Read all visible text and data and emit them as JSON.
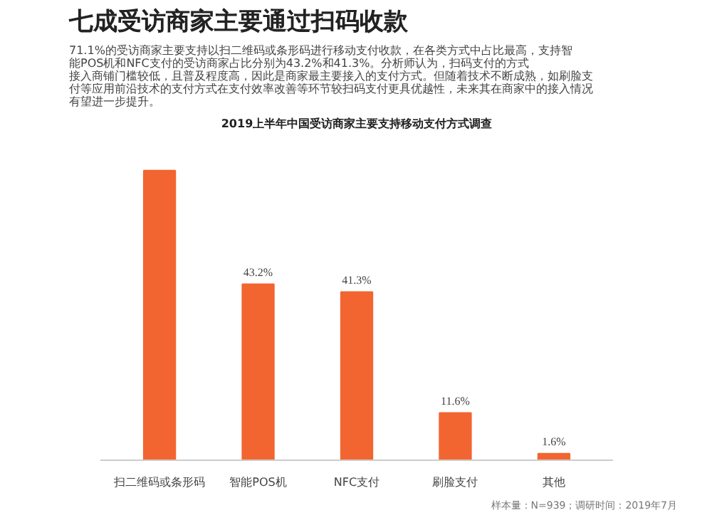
{
  "chart_data": {
    "type": "bar",
    "title": "七成受访商家主要通过扫码收款",
    "subtitle": "2019上半年中国受访商家主要支持移动支付方式调查",
    "categories": [
      "扫二维码或条形码",
      "智能POS机",
      "NFC支付",
      "刷脸支付",
      "其他"
    ],
    "values": [
      71.1,
      43.2,
      41.3,
      11.6,
      1.6
    ],
    "color": "#f26531",
    "value_labels": [
      null,
      "43.2%",
      "41.3%",
      "11.6%",
      "1.6%"
    ],
    "annotations": [
      "71.1%的受访商家主要支持以扫二维码或条形码进行移动支付收款，在各类方式中占比最高，支持智能POS机和NFC支付的受访商家占比分别为43.2%和41.3%。分析师认为，扫码支付的方式接入商铺门槛较低，且普及程度高，因此是商家最主要接入的支付方式。但随着技术不断成熟，如刷脸支付等应用前沿技术的支付方式在支付效率改善等环节较扫码支付更具优越性，未来其在商家中的接入情况有望进一步提升。",
      "样本量：N=939；调研时间：2019年7月"
    ],
    "grid": false
  }
}
